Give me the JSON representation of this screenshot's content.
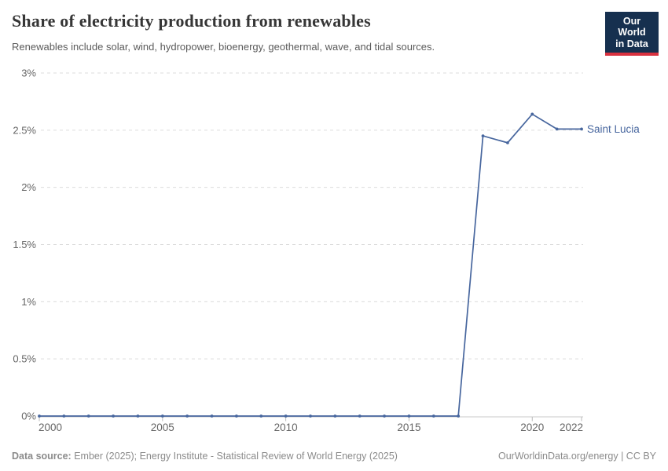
{
  "header": {
    "title": "Share of electricity production from renewables",
    "subtitle": "Renewables include solar, wind, hydropower, bioenergy, geothermal, wave, and tidal sources.",
    "logo": {
      "line1": "Our World",
      "line2": "in Data",
      "bg_color": "#16304f",
      "accent_color": "#d8313f"
    }
  },
  "chart_data": {
    "type": "line",
    "title": "Share of electricity production from renewables",
    "xlabel": "",
    "ylabel": "",
    "xlim": [
      2000,
      2022
    ],
    "ylim": [
      0,
      3
    ],
    "grid": "horizontal-dashed",
    "legend_position": "end-of-line-label",
    "x_ticks": [
      {
        "value": 2000,
        "label": "2000"
      },
      {
        "value": 2005,
        "label": "2005"
      },
      {
        "value": 2010,
        "label": "2010"
      },
      {
        "value": 2015,
        "label": "2015"
      },
      {
        "value": 2020,
        "label": "2020"
      },
      {
        "value": 2022,
        "label": "2022"
      }
    ],
    "y_ticks": [
      {
        "value": 0,
        "label": "0%"
      },
      {
        "value": 0.5,
        "label": "0.5%"
      },
      {
        "value": 1,
        "label": "1%"
      },
      {
        "value": 1.5,
        "label": "1.5%"
      },
      {
        "value": 2,
        "label": "2%"
      },
      {
        "value": 2.5,
        "label": "2.5%"
      },
      {
        "value": 3,
        "label": "3%"
      }
    ],
    "series": [
      {
        "name": "Saint Lucia",
        "color": "#47669e",
        "x": [
          2000,
          2001,
          2002,
          2003,
          2004,
          2005,
          2006,
          2007,
          2008,
          2009,
          2010,
          2011,
          2012,
          2013,
          2014,
          2015,
          2016,
          2017,
          2018,
          2019,
          2020,
          2021,
          2022
        ],
        "values": [
          0,
          0,
          0,
          0,
          0,
          0,
          0,
          0,
          0,
          0,
          0,
          0,
          0,
          0,
          0,
          0,
          0,
          0,
          2.45,
          2.39,
          2.64,
          2.51,
          2.51
        ]
      }
    ]
  },
  "footer": {
    "source_label": "Data source:",
    "source_text": " Ember (2025); Energy Institute - Statistical Review of World Energy (2025)",
    "right_text": "OurWorldinData.org/energy | CC BY"
  }
}
